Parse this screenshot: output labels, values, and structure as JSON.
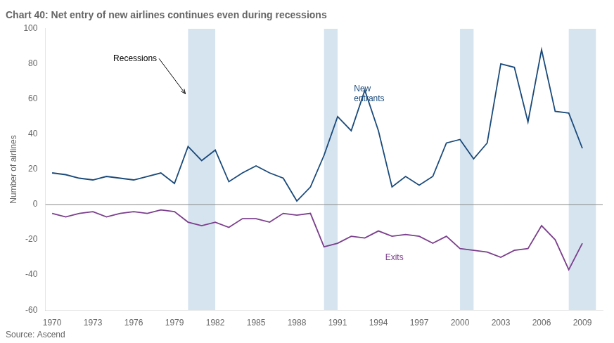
{
  "chart_data": {
    "type": "line",
    "title": "Chart 40: Net entry of new airlines continues even during recessions",
    "subtitle": "Source: Ascend",
    "ylabel": "Number of airlines",
    "x": [
      1970,
      1971,
      1972,
      1973,
      1974,
      1975,
      1976,
      1977,
      1978,
      1979,
      1980,
      1981,
      1982,
      1983,
      1984,
      1985,
      1986,
      1987,
      1988,
      1989,
      1990,
      1991,
      1992,
      1993,
      1994,
      1995,
      1996,
      1997,
      1998,
      1999,
      2000,
      2001,
      2002,
      2003,
      2004,
      2005,
      2006,
      2007,
      2008,
      2009
    ],
    "series": [
      {
        "color": "#1a4a7a",
        "values": [
          18,
          17,
          15,
          14,
          16,
          15,
          14,
          16,
          18,
          12,
          33,
          25,
          31,
          13,
          18,
          22,
          18,
          15,
          2,
          10,
          28,
          50,
          42,
          65,
          42,
          10,
          16,
          11,
          16,
          35,
          37,
          26,
          35,
          80,
          78,
          47,
          88,
          53,
          52,
          32
        ]
      },
      {
        "color": "#7b3f8c",
        "values": [
          -5,
          -7,
          -5,
          -4,
          -7,
          -5,
          -4,
          -5,
          -3,
          -4,
          -10,
          -12,
          -10,
          -13,
          -8,
          -8,
          -10,
          -5,
          -6,
          -5,
          -24,
          -22,
          -18,
          -19,
          -15,
          -18,
          -17,
          -18,
          -22,
          -18,
          -25,
          -26,
          -27,
          -30,
          -26,
          -25,
          -12,
          -20,
          -37,
          -22
        ]
      }
    ],
    "recessions": {
      "color": "#c5d9ea",
      "ranges": [
        [
          1980,
          1982
        ],
        [
          1990,
          1991
        ],
        [
          2000,
          2001
        ],
        [
          2008,
          2010
        ]
      ]
    },
    "annotations": [
      {
        "text": "Recessions",
        "x": 1974.5,
        "y": 83,
        "arrow_to": [
          1979.8,
          63
        ]
      },
      {
        "text": "New\nentrants",
        "x": 1992.2,
        "y": 68,
        "color": "#1a4a7a"
      },
      {
        "text": "Exits",
        "x": 1994.5,
        "y": -28,
        "color": "#7b3f8c"
      }
    ],
    "xlim": [
      1969.5,
      2010.5
    ],
    "xticks": [
      1970,
      1973,
      1976,
      1979,
      1982,
      1985,
      1988,
      1991,
      1994,
      1997,
      2000,
      2003,
      2006,
      2009
    ],
    "ylim": [
      -60,
      100
    ],
    "yticks": [
      -60,
      -40,
      -20,
      0,
      20,
      40,
      60,
      80,
      100
    ],
    "grid": false
  }
}
